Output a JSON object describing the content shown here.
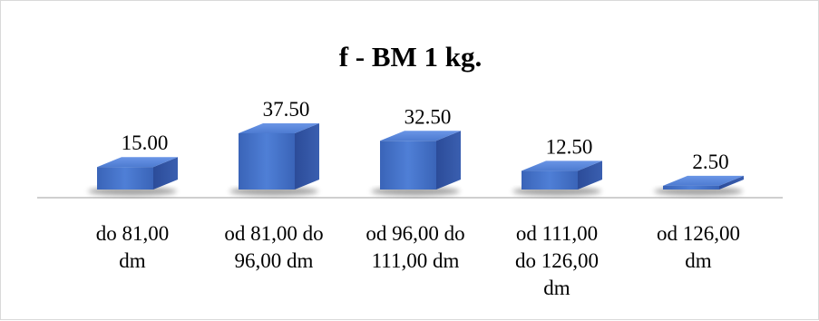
{
  "chart_data": {
    "type": "bar",
    "style": "3d-box",
    "title": "f - BM 1 kg.",
    "categories": [
      [
        "do 81,00",
        "dm"
      ],
      [
        "od 81,00 do",
        "96,00 dm"
      ],
      [
        "od 96,00 do",
        "111,00 dm"
      ],
      [
        "od 111,00",
        "do 126,00",
        "dm"
      ],
      [
        "od 126,00",
        "dm"
      ]
    ],
    "values": [
      15.0,
      37.5,
      32.5,
      12.5,
      2.5
    ],
    "value_labels": [
      "15.00",
      "37.50",
      "32.50",
      "12.50",
      "2.50"
    ],
    "ylim": [
      0,
      37.5
    ],
    "grid": false,
    "legend": "none",
    "colors": {
      "front": "#4472c4",
      "top": "#5b8ae0",
      "side": "#2f4f9e",
      "axis": "#bfbfbf"
    }
  }
}
